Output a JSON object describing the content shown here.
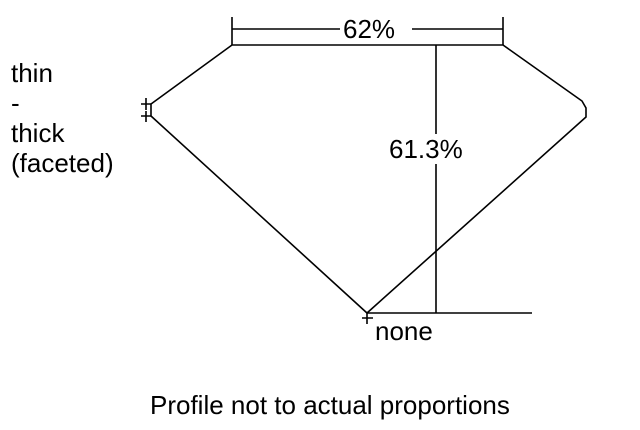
{
  "girdle_label": [
    "thin",
    "-",
    "thick",
    "(faceted)"
  ],
  "table_label": "62%",
  "depth_label": "61.3%",
  "culet_label": "none",
  "footer": "Profile not to actual proportions"
}
